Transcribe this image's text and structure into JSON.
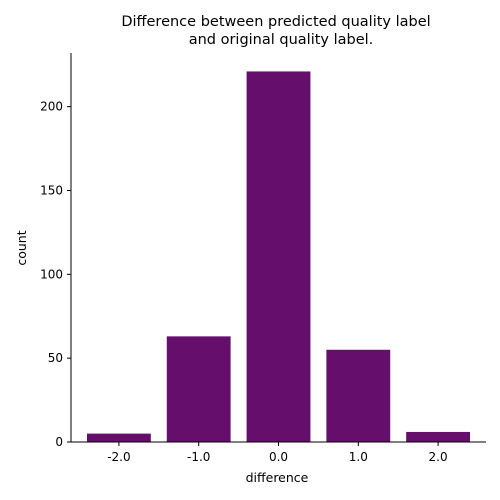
{
  "chart_data": {
    "type": "bar",
    "title_lines": [
      "Difference between predicted quality label",
      "and original quality label."
    ],
    "xlabel": "difference",
    "ylabel": "count",
    "categories": [
      "-2.0",
      "-1.0",
      "0.0",
      "1.0",
      "2.0"
    ],
    "values": [
      5,
      63,
      221,
      55,
      6
    ],
    "ylim": [
      0,
      232
    ],
    "yticks": [
      0,
      50,
      100,
      150,
      200
    ],
    "grid": false,
    "bar_color": "#660e6c"
  }
}
